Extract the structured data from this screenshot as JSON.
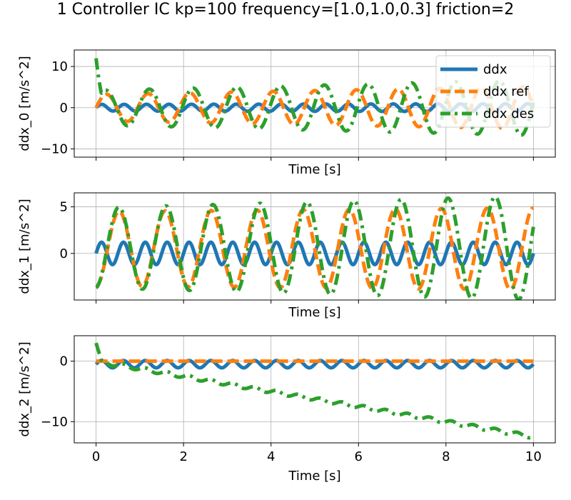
{
  "figure": {
    "title": "1 Controller IC kp=100 frequency=[1.0,1.0,0.3] friction=2"
  },
  "chart_data": [
    {
      "type": "line",
      "ylabel": "ddx_0 [m/s^2]",
      "xlabel": "Time [s]",
      "xlim": [
        -0.5,
        10.5
      ],
      "ylim": [
        -12,
        14
      ],
      "xticks": [
        0,
        2,
        4,
        6,
        8,
        10
      ],
      "xtick_labels_visible": false,
      "yticks": [
        -10,
        0,
        10
      ],
      "ytick_labels": [
        "−10",
        "0",
        "10"
      ],
      "grid": true,
      "legend": {
        "placement": "top-right"
      },
      "series": [
        {
          "name": "ddx",
          "color": "#1f77b4",
          "style": "solid",
          "model": {
            "freq": 1.95,
            "amp": 0.8,
            "phase": 0.0,
            "offset": 0.0,
            "amp_growth": 0.02
          }
        },
        {
          "name": "ddx ref",
          "color": "#ff7f0e",
          "style": "dashed",
          "model": {
            "freq": 1.05,
            "amp": 3.2,
            "phase": 0.0,
            "offset": 0.0,
            "amp_growth": 0.06
          }
        },
        {
          "name": "ddx des",
          "color": "#2ca02c",
          "style": "dashdot",
          "model": {
            "freq": 1.0,
            "amp": 4.2,
            "phase": 0.2,
            "offset": 0.0,
            "amp_growth": 0.06,
            "spike_start": 12
          }
        }
      ]
    },
    {
      "type": "line",
      "ylabel": "ddx_1 [m/s^2]",
      "xlabel": "Time [s]",
      "xlim": [
        -0.5,
        10.5
      ],
      "ylim": [
        -5,
        6.5
      ],
      "xticks": [
        0,
        2,
        4,
        6,
        8,
        10
      ],
      "xtick_labels_visible": false,
      "yticks": [
        0,
        5
      ],
      "ytick_labels": [
        "0",
        "5"
      ],
      "grid": true,
      "legend": null,
      "series": [
        {
          "name": "ddx",
          "color": "#1f77b4",
          "style": "solid",
          "model": {
            "freq": 2.0,
            "amp": 1.2,
            "phase": 0.0,
            "offset": 0.0,
            "amp_growth": 0.0
          }
        },
        {
          "name": "ddx ref",
          "color": "#ff7f0e",
          "style": "dashed",
          "model": {
            "freq": 0.95,
            "amp": 4.0,
            "phase": -1.57,
            "offset": 0.5,
            "amp_growth": 0.01
          }
        },
        {
          "name": "ddx des",
          "color": "#2ca02c",
          "style": "dashdot",
          "model": {
            "freq": 0.93,
            "amp": 4.3,
            "phase": -1.47,
            "offset": 0.6,
            "amp_growth": 0.03
          }
        }
      ]
    },
    {
      "type": "line",
      "ylabel": "ddx_2 [m/s^2]",
      "xlabel": "Time [s]",
      "xlim": [
        -0.5,
        10.5
      ],
      "ylim": [
        -13.5,
        4.2
      ],
      "xticks": [
        0,
        2,
        4,
        6,
        8,
        10
      ],
      "xtick_labels_visible": true,
      "xtick_labels": [
        "0",
        "2",
        "4",
        "6",
        "8",
        "10"
      ],
      "yticks": [
        -10,
        0
      ],
      "ytick_labels": [
        "−10",
        "0"
      ],
      "grid": true,
      "legend": null,
      "series": [
        {
          "name": "ddx",
          "color": "#1f77b4",
          "style": "solid",
          "model": {
            "freq": 2.0,
            "amp": 0.6,
            "phase": 0.0,
            "offset": -0.5,
            "amp_growth": 0.0
          }
        },
        {
          "name": "ddx ref",
          "color": "#ff7f0e",
          "style": "dashed",
          "model": {
            "freq": 0.0,
            "amp": 0.0,
            "phase": 0.0,
            "offset": 0.0,
            "amp_growth": 0.0
          }
        },
        {
          "name": "ddx des",
          "color": "#2ca02c",
          "style": "dashdot",
          "model": {
            "freq": 2.0,
            "amp": 0.3,
            "phase": 0.0,
            "offset": 0.0,
            "slope": -1.25,
            "amp_growth": 0.0,
            "spike_start": 3
          }
        }
      ]
    }
  ]
}
